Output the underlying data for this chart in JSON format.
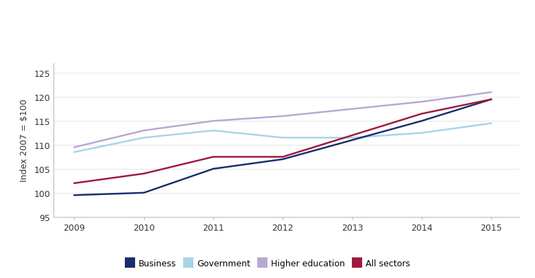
{
  "years": [
    2009,
    2010,
    2011,
    2012,
    2013,
    2014,
    2015
  ],
  "business": [
    99.5,
    100.0,
    105.0,
    107.0,
    111.0,
    115.0,
    119.5
  ],
  "government": [
    108.5,
    111.5,
    113.0,
    111.5,
    111.5,
    112.5,
    114.5
  ],
  "higher_education": [
    109.5,
    113.0,
    115.0,
    116.0,
    117.5,
    119.0,
    121.0
  ],
  "all_sectors": [
    102.0,
    104.0,
    107.5,
    107.5,
    112.0,
    116.5,
    119.5
  ],
  "business_color": "#1a2e6e",
  "government_color": "#a8d4e8",
  "higher_education_color": "#b8a8d4",
  "all_sectors_color": "#9e1a3c",
  "ylabel": "Index 2007 = $100",
  "ylim": [
    95,
    127
  ],
  "yticks": [
    95,
    100,
    105,
    110,
    115,
    120,
    125
  ],
  "xlim": [
    2008.7,
    2015.4
  ],
  "xticks": [
    2009,
    2010,
    2011,
    2012,
    2013,
    2014,
    2015
  ],
  "legend_labels": [
    "Business",
    "Government",
    "Higher education",
    "All sectors"
  ],
  "line_width": 1.8,
  "background_color": "#ffffff"
}
